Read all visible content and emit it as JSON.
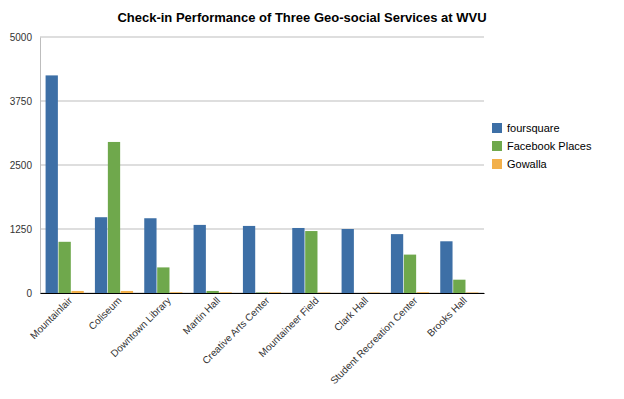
{
  "chart_data": {
    "type": "bar",
    "title": "Check-in Performance of Three Geo-social Services at WVU",
    "categories": [
      "Mountainlair",
      "Coliseum",
      "Downtown Library",
      "Martin Hall",
      "Creative Arts Center",
      "Mountaineer Field",
      "Clark Hall",
      "Student Recreation Center",
      "Brooks Hall"
    ],
    "series": [
      {
        "name": "foursquare",
        "color": "#3d6fa6",
        "values": [
          4250,
          1480,
          1460,
          1330,
          1310,
          1270,
          1250,
          1150,
          1010
        ]
      },
      {
        "name": "Facebook Places",
        "color": "#6fa84c",
        "values": [
          1000,
          2950,
          500,
          40,
          10,
          1210,
          0,
          750,
          260
        ]
      },
      {
        "name": "Gowalla",
        "color": "#f2b04b",
        "values": [
          40,
          40,
          15,
          15,
          15,
          10,
          10,
          15,
          10
        ]
      }
    ],
    "ylim": [
      0,
      5000
    ],
    "yticks": [
      0,
      1250,
      2500,
      3750,
      5000
    ],
    "grid": true,
    "legend": "right"
  }
}
